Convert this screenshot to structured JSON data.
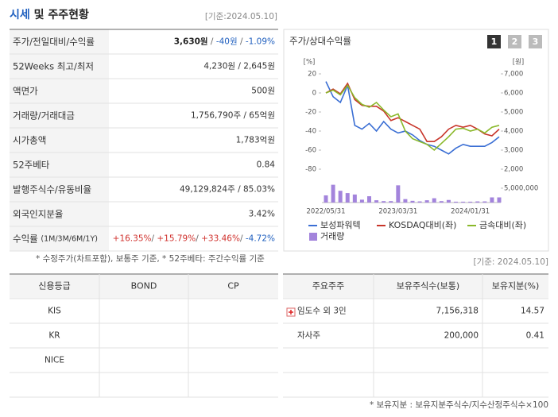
{
  "header": {
    "title": [
      {
        "text": "시세",
        "color": "#1f5fbf"
      },
      {
        "text": " 및 주주현황",
        "color": "#222"
      }
    ],
    "basis": "[기준:2024.05.10]"
  },
  "summary": {
    "rows": [
      {
        "label": [
          {
            "text": "주가/전일대비/수익률"
          }
        ],
        "value": [
          {
            "text": "3,630원",
            "bold": true,
            "color": "#222"
          },
          {
            "text": " / ",
            "color": "#666"
          },
          {
            "text": "-40원",
            "color": "#1f5fbf"
          },
          {
            "text": " / ",
            "color": "#666"
          },
          {
            "text": "-1.09%",
            "color": "#1f5fbf"
          }
        ]
      },
      {
        "label": [
          {
            "text": "52Weeks 최고/최저"
          }
        ],
        "value": [
          {
            "text": "4,230원 / 2,645원"
          }
        ]
      },
      {
        "label": [
          {
            "text": "액면가"
          }
        ],
        "value": [
          {
            "text": "500원"
          }
        ]
      },
      {
        "label": [
          {
            "text": "거래량/거래대금"
          }
        ],
        "value": [
          {
            "text": "1,756,790주 / 65억원"
          }
        ]
      },
      {
        "label": [
          {
            "text": "시가총액"
          }
        ],
        "value": [
          {
            "text": "1,783억원"
          }
        ]
      },
      {
        "label": [
          {
            "text": "52주베타"
          }
        ],
        "value": [
          {
            "text": "0.84"
          }
        ]
      },
      {
        "label": [
          {
            "text": "발행주식수/유동비율"
          }
        ],
        "value": [
          {
            "text": "49,129,824주 / 85.03%"
          }
        ]
      },
      {
        "label": [
          {
            "text": "외국인지분율"
          }
        ],
        "value": [
          {
            "text": "3.42%"
          }
        ]
      },
      {
        "label": [
          {
            "text": "수익률 "
          },
          {
            "text": "(1M/3M/6M/1Y)",
            "small": true
          }
        ],
        "value": [
          {
            "text": "+16.35%",
            "color": "#d0312d"
          },
          {
            "text": "/ ",
            "color": "#666"
          },
          {
            "text": "+15.79%",
            "color": "#d0312d"
          },
          {
            "text": "/ ",
            "color": "#666"
          },
          {
            "text": "+33.46%",
            "color": "#d0312d"
          },
          {
            "text": "/ ",
            "color": "#666"
          },
          {
            "text": "-4.72%",
            "color": "#1f5fbf"
          }
        ]
      }
    ],
    "footnote": "* 수정주가(차트포함), 보통주 기준, * 52주베타: 주간수익률 기준"
  },
  "chart_panel": {
    "title": "주가/상대수익률",
    "buttons": [
      "1",
      "2",
      "3"
    ]
  },
  "chart_data": {
    "type": "line",
    "y_unit": "[%]",
    "y2_unit": "[원]",
    "categories": [
      "2022/05/31",
      null,
      null,
      null,
      null,
      null,
      null,
      null,
      null,
      null,
      "2023/03/31",
      null,
      null,
      null,
      null,
      null,
      null,
      null,
      null,
      null,
      "2024/01/31",
      null,
      null,
      null,
      null
    ],
    "ylim": [
      -80,
      20
    ],
    "yticks": [
      20,
      0,
      -20,
      -40,
      -60,
      -80
    ],
    "y2lim": [
      2000,
      7000
    ],
    "y2ticks": [
      {
        "value": 7000,
        "label": "7,000"
      },
      {
        "value": 6000,
        "label": "6,000"
      },
      {
        "value": 5000,
        "label": "5,000"
      },
      {
        "value": 4000,
        "label": "4,000"
      },
      {
        "value": 3000,
        "label": "3,000"
      },
      {
        "value": 2000,
        "label": "2,000"
      }
    ],
    "y3lim": [
      0,
      7200000
    ],
    "y3ticks": [
      {
        "value": 5000000,
        "label": "5,000,000"
      }
    ],
    "grid": false,
    "series": [
      {
        "name": "보성파워텍",
        "color": "#3b6fd4",
        "axis": "y2",
        "values": [
          6600,
          5800,
          5500,
          6400,
          4300,
          4100,
          4400,
          4000,
          4500,
          4100,
          3900,
          4000,
          3800,
          3500,
          3300,
          3200,
          3000,
          2800,
          3100,
          3300,
          3200,
          3200,
          3200,
          3400,
          3700
        ]
      },
      {
        "name": "KOSDAQ대비(좌)",
        "color": "#c8352a",
        "values": [
          0,
          4,
          -1,
          10,
          -7,
          -13,
          -14,
          -14,
          -19,
          -29,
          -26,
          -30,
          -34,
          -38,
          -51,
          -51,
          -46,
          -38,
          -34,
          -36,
          -34,
          -38,
          -43,
          -45,
          -38
        ]
      },
      {
        "name": "금속대비(좌)",
        "color": "#8ab82a",
        "values": [
          0,
          3,
          -2,
          8,
          -5,
          -12,
          -15,
          -10,
          -18,
          -25,
          -22,
          -40,
          -48,
          -51,
          -54,
          -60,
          -53,
          -46,
          -38,
          -37,
          -40,
          -38,
          -42,
          -36,
          -34
        ]
      },
      {
        "name": "거래량",
        "color": "#a384dc",
        "kind": "bar",
        "axis": "y3",
        "values": [
          2500000,
          6200000,
          4100000,
          3300000,
          2800000,
          1000000,
          2200000,
          800000,
          500000,
          500000,
          6000000,
          1200000,
          600000,
          400000,
          800000,
          1500000,
          500000,
          900000,
          300000,
          300000,
          300000,
          400000,
          400000,
          1800000,
          1800000
        ]
      }
    ]
  },
  "bottom_basis": "[기준: 2024.05.10]",
  "credit": {
    "columns": [
      "신용등급",
      "BOND",
      "CP"
    ],
    "rows": [
      [
        "KIS"
      ],
      [
        "KR"
      ],
      [
        "NICE"
      ]
    ]
  },
  "holders": {
    "columns": [
      "주요주주",
      "보유주식수(보통)",
      "보유지분(%)"
    ],
    "rows": [
      [
        "임도수 외 3인",
        "7,156,318",
        "14.57"
      ],
      [
        "자사주",
        "200,000",
        "0.41"
      ]
    ],
    "footnote": "* 보유지분 : 보유지분주식수/지수산정주식수×100"
  }
}
